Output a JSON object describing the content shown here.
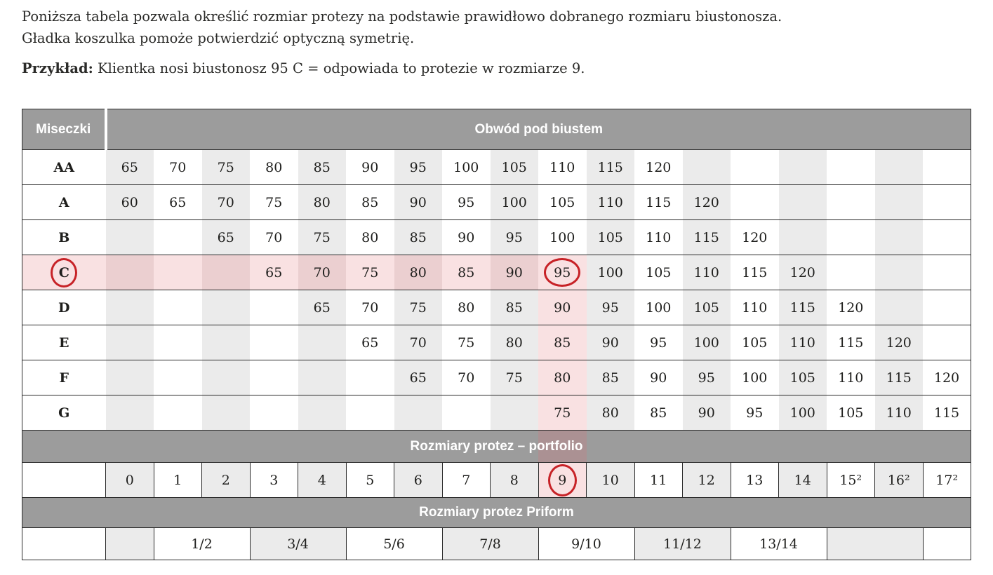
{
  "intro": {
    "line1": "Poniższa tabela pozwala określić rozmiar protezy na podstawie prawidłowo dobranego rozmiaru biustonosza.",
    "line2": "Gładka koszulka pomoże potwierdzić optyczną symetrię.",
    "example_label": "Przykład:",
    "example_text": " Klientka nosi biustonosz 95 C = odpowiada to protezie w rozmiarze 9."
  },
  "table": {
    "corner_label": "Miseczki",
    "band_title": "Obwód pod biustem",
    "portfolio_header": "Rozmiary protez – portfolio",
    "priform_header": "Rozmiary protez Priform",
    "cup_rows": [
      {
        "cup": "AA",
        "cells": [
          "65",
          "70",
          "75",
          "80",
          "85",
          "90",
          "95",
          "100",
          "105",
          "110",
          "115",
          "120",
          "",
          "",
          "",
          "",
          "",
          ""
        ]
      },
      {
        "cup": "A",
        "cells": [
          "60",
          "65",
          "70",
          "75",
          "80",
          "85",
          "90",
          "95",
          "100",
          "105",
          "110",
          "115",
          "120",
          "",
          "",
          "",
          "",
          ""
        ]
      },
      {
        "cup": "B",
        "cells": [
          "",
          "",
          "65",
          "70",
          "75",
          "80",
          "85",
          "90",
          "95",
          "100",
          "105",
          "110",
          "115",
          "120",
          "",
          "",
          "",
          ""
        ]
      },
      {
        "cup": "C",
        "cells": [
          "",
          "",
          "",
          "65",
          "70",
          "75",
          "80",
          "85",
          "90",
          "95",
          "100",
          "105",
          "110",
          "115",
          "120",
          "",
          "",
          ""
        ]
      },
      {
        "cup": "D",
        "cells": [
          "",
          "",
          "",
          "",
          "65",
          "70",
          "75",
          "80",
          "85",
          "90",
          "95",
          "100",
          "105",
          "110",
          "115",
          "120",
          "",
          ""
        ]
      },
      {
        "cup": "E",
        "cells": [
          "",
          "",
          "",
          "",
          "",
          "65",
          "70",
          "75",
          "80",
          "85",
          "90",
          "95",
          "100",
          "105",
          "110",
          "115",
          "120",
          ""
        ]
      },
      {
        "cup": "F",
        "cells": [
          "",
          "",
          "",
          "",
          "",
          "",
          "65",
          "70",
          "75",
          "80",
          "85",
          "90",
          "95",
          "100",
          "105",
          "110",
          "115",
          "120"
        ]
      },
      {
        "cup": "G",
        "cells": [
          "",
          "",
          "",
          "",
          "",
          "",
          "",
          "",
          "",
          "75",
          "80",
          "85",
          "90",
          "95",
          "100",
          "105",
          "110",
          "115"
        ]
      }
    ],
    "portfolio_sizes": [
      "0",
      "1",
      "2",
      "3",
      "4",
      "5",
      "6",
      "7",
      "8",
      "9",
      "10",
      "11",
      "12",
      "13",
      "14",
      "15²",
      "16²",
      "17²"
    ],
    "priform_spans": [
      {
        "label": "",
        "span": 1,
        "shade": true
      },
      {
        "label": "1/2",
        "span": 2,
        "shade": false
      },
      {
        "label": "3/4",
        "span": 2,
        "shade": true
      },
      {
        "label": "5/6",
        "span": 2,
        "shade": false
      },
      {
        "label": "7/8",
        "span": 2,
        "shade": true
      },
      {
        "label": "9/10",
        "span": 2,
        "shade": false
      },
      {
        "label": "11/12",
        "span": 2,
        "shade": true
      },
      {
        "label": "13/14",
        "span": 2,
        "shade": false
      },
      {
        "label": "",
        "span": 2,
        "shade": true
      },
      {
        "label": "",
        "span": 1,
        "shade": false
      }
    ],
    "highlight": {
      "cup": "C",
      "col_index": 9,
      "circled_values": [
        "C",
        "95",
        "9"
      ]
    }
  },
  "colors": {
    "band_gray": "#9c9c9c",
    "shade_gray": "#ebebeb",
    "pink_light": "#f9e1e2",
    "pink_dark": "#ebcfd0",
    "band_tint": "#ab9193",
    "circle_red": "#c72227",
    "border": "#2a2a2a",
    "text": "#1e1e1c"
  }
}
